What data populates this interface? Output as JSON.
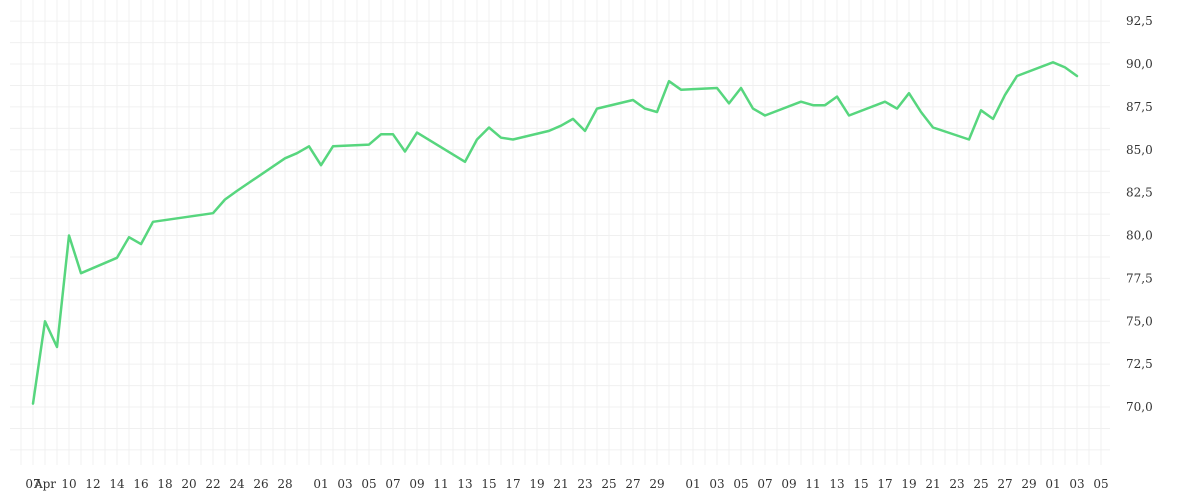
{
  "chart_data": {
    "type": "line",
    "title": "",
    "xlabel": "",
    "ylabel": "",
    "grid": true,
    "legend": "none",
    "y_axis_side": "right",
    "decimal_separator": ",",
    "ylim": [
      67.5,
      93.5
    ],
    "y_ticks": [
      "70,0",
      "72,5",
      "75,0",
      "77,5",
      "80,0",
      "82,5",
      "85,0",
      "87,5",
      "90,0",
      "92,5"
    ],
    "y_tick_values": [
      70.0,
      72.5,
      75.0,
      77.5,
      80.0,
      82.5,
      85.0,
      87.5,
      90.0,
      92.5
    ],
    "x_tick_labels": [
      {
        "i": 0,
        "label": "07"
      },
      {
        "i": 1,
        "label": "Apr"
      },
      {
        "i": 3,
        "label": "10"
      },
      {
        "i": 5,
        "label": "12"
      },
      {
        "i": 7,
        "label": "14"
      },
      {
        "i": 9,
        "label": "16"
      },
      {
        "i": 11,
        "label": "18"
      },
      {
        "i": 13,
        "label": "20"
      },
      {
        "i": 15,
        "label": "22"
      },
      {
        "i": 17,
        "label": "24"
      },
      {
        "i": 19,
        "label": "26"
      },
      {
        "i": 21,
        "label": "28"
      },
      {
        "i": 24,
        "label": "01"
      },
      {
        "i": 26,
        "label": "03"
      },
      {
        "i": 28,
        "label": "05"
      },
      {
        "i": 30,
        "label": "07"
      },
      {
        "i": 32,
        "label": "09"
      },
      {
        "i": 34,
        "label": "11"
      },
      {
        "i": 36,
        "label": "13"
      },
      {
        "i": 38,
        "label": "15"
      },
      {
        "i": 40,
        "label": "17"
      },
      {
        "i": 42,
        "label": "19"
      },
      {
        "i": 44,
        "label": "21"
      },
      {
        "i": 46,
        "label": "23"
      },
      {
        "i": 48,
        "label": "25"
      },
      {
        "i": 50,
        "label": "27"
      },
      {
        "i": 52,
        "label": "29"
      },
      {
        "i": 55,
        "label": "01"
      },
      {
        "i": 57,
        "label": "03"
      },
      {
        "i": 59,
        "label": "05"
      },
      {
        "i": 61,
        "label": "07"
      },
      {
        "i": 63,
        "label": "09"
      },
      {
        "i": 65,
        "label": "11"
      },
      {
        "i": 67,
        "label": "13"
      },
      {
        "i": 69,
        "label": "15"
      },
      {
        "i": 71,
        "label": "17"
      },
      {
        "i": 73,
        "label": "19"
      },
      {
        "i": 75,
        "label": "21"
      },
      {
        "i": 77,
        "label": "23"
      },
      {
        "i": 79,
        "label": "25"
      },
      {
        "i": 81,
        "label": "27"
      },
      {
        "i": 83,
        "label": "29"
      },
      {
        "i": 85,
        "label": "01"
      },
      {
        "i": 87,
        "label": "03"
      },
      {
        "i": 89,
        "label": "05"
      }
    ],
    "x_slots": 90,
    "series": [
      {
        "color": "#57d67e",
        "points": [
          [
            0,
            70.2
          ],
          [
            1,
            75.0
          ],
          [
            2,
            73.5
          ],
          [
            3,
            80.0
          ],
          [
            4,
            77.8
          ],
          [
            7,
            78.7
          ],
          [
            8,
            79.9
          ],
          [
            9,
            79.5
          ],
          [
            10,
            80.8
          ],
          [
            15,
            81.3
          ],
          [
            16,
            82.1
          ],
          [
            17,
            82.6
          ],
          [
            21,
            84.5
          ],
          [
            22,
            84.8
          ],
          [
            23,
            85.2
          ],
          [
            24,
            84.1
          ],
          [
            25,
            85.2
          ],
          [
            28,
            85.3
          ],
          [
            29,
            85.9
          ],
          [
            30,
            85.9
          ],
          [
            31,
            84.9
          ],
          [
            32,
            86.0
          ],
          [
            36,
            84.3
          ],
          [
            37,
            85.6
          ],
          [
            38,
            86.3
          ],
          [
            39,
            85.7
          ],
          [
            40,
            85.6
          ],
          [
            43,
            86.1
          ],
          [
            44,
            86.4
          ],
          [
            45,
            86.8
          ],
          [
            46,
            86.1
          ],
          [
            47,
            87.4
          ],
          [
            50,
            87.9
          ],
          [
            51,
            87.4
          ],
          [
            52,
            87.2
          ],
          [
            53,
            89.0
          ],
          [
            54,
            88.5
          ],
          [
            57,
            88.6
          ],
          [
            58,
            87.7
          ],
          [
            59,
            88.6
          ],
          [
            60,
            87.4
          ],
          [
            61,
            87.0
          ],
          [
            64,
            87.8
          ],
          [
            65,
            87.6
          ],
          [
            66,
            87.6
          ],
          [
            67,
            88.1
          ],
          [
            68,
            87.0
          ],
          [
            71,
            87.8
          ],
          [
            72,
            87.4
          ],
          [
            73,
            88.3
          ],
          [
            74,
            87.2
          ],
          [
            75,
            86.3
          ],
          [
            78,
            85.6
          ],
          [
            79,
            87.3
          ],
          [
            80,
            86.8
          ],
          [
            81,
            88.2
          ],
          [
            82,
            89.3
          ],
          [
            85,
            90.1
          ],
          [
            86,
            89.8
          ],
          [
            87,
            89.3
          ]
        ]
      }
    ]
  }
}
